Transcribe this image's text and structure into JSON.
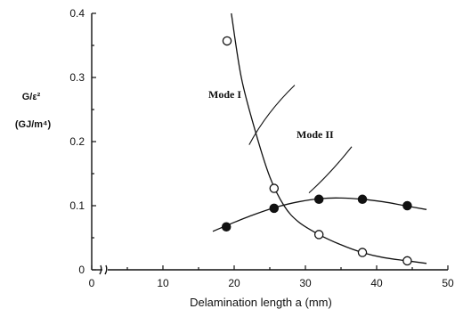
{
  "chart_data": {
    "type": "scatter",
    "xlabel": "Delamination length a (mm)",
    "ylabel": "G/ε²",
    "ylabel_units": "(GJ/m⁴)",
    "xlim": [
      0,
      50
    ],
    "ylim": [
      0,
      0.4
    ],
    "x_ticks": [
      "0",
      "10",
      "20",
      "30",
      "40",
      "50"
    ],
    "y_ticks": [
      "0",
      "0.1",
      "0.2",
      "0.3",
      "0.4"
    ],
    "grid": false,
    "axis_break": true,
    "series": [
      {
        "name": "Mode I",
        "marker": "open-circle",
        "points": [
          {
            "x": 19,
            "y": 0.357
          },
          {
            "x": 25.6,
            "y": 0.127
          },
          {
            "x": 31.9,
            "y": 0.055
          },
          {
            "x": 38,
            "y": 0.027
          },
          {
            "x": 44.3,
            "y": 0.014
          }
        ],
        "fit_curve": [
          {
            "x": 19.6,
            "y": 0.4
          },
          {
            "x": 21,
            "y": 0.3
          },
          {
            "x": 23,
            "y": 0.215
          },
          {
            "x": 25,
            "y": 0.145
          },
          {
            "x": 27,
            "y": 0.1
          },
          {
            "x": 29,
            "y": 0.075
          },
          {
            "x": 31.9,
            "y": 0.055
          },
          {
            "x": 35,
            "y": 0.039
          },
          {
            "x": 38,
            "y": 0.027
          },
          {
            "x": 41,
            "y": 0.019
          },
          {
            "x": 44.3,
            "y": 0.014
          },
          {
            "x": 47,
            "y": 0.01
          }
        ]
      },
      {
        "name": "Mode II",
        "marker": "filled-circle",
        "points": [
          {
            "x": 18.9,
            "y": 0.067
          },
          {
            "x": 25.6,
            "y": 0.096
          },
          {
            "x": 31.9,
            "y": 0.11
          },
          {
            "x": 38,
            "y": 0.11
          },
          {
            "x": 44.3,
            "y": 0.1
          }
        ],
        "fit_curve": [
          {
            "x": 17,
            "y": 0.06
          },
          {
            "x": 20,
            "y": 0.074
          },
          {
            "x": 23,
            "y": 0.087
          },
          {
            "x": 26,
            "y": 0.098
          },
          {
            "x": 29,
            "y": 0.106
          },
          {
            "x": 32,
            "y": 0.111
          },
          {
            "x": 35,
            "y": 0.112
          },
          {
            "x": 38,
            "y": 0.11
          },
          {
            "x": 41,
            "y": 0.106
          },
          {
            "x": 44,
            "y": 0.1
          },
          {
            "x": 47,
            "y": 0.094
          }
        ]
      }
    ],
    "annotations": [
      {
        "text": "Mode I",
        "series": 0
      },
      {
        "text": "Mode II",
        "series": 1
      }
    ]
  }
}
